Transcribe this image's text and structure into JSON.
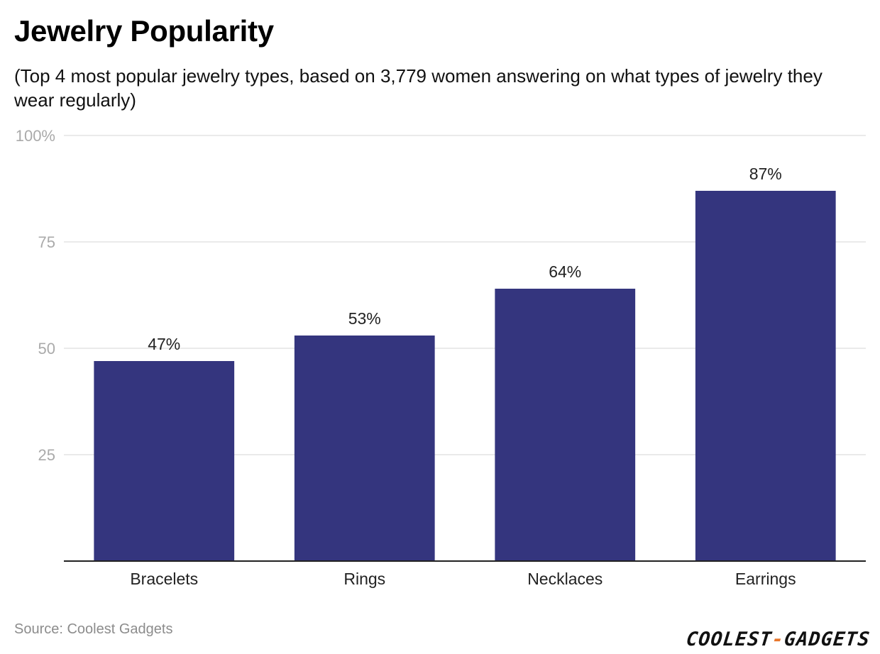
{
  "header": {
    "title": "Jewelry Popularity",
    "subtitle": "(Top 4 most popular jewelry types, based on 3,779 women answering on what types of jewelry they wear regularly)"
  },
  "footer": {
    "source": "Source: Coolest Gadgets",
    "logo_left": "COOLEST",
    "logo_dash": "-",
    "logo_right": "GADGETS"
  },
  "colors": {
    "bar": "#34357e",
    "logo_accent": "#e8762b"
  },
  "chart_data": {
    "type": "bar",
    "categories": [
      "Bracelets",
      "Rings",
      "Necklaces",
      "Earrings"
    ],
    "values": [
      47,
      53,
      64,
      87
    ],
    "data_labels": [
      "47%",
      "53%",
      "64%",
      "87%"
    ],
    "title": "Jewelry Popularity",
    "subtitle": "(Top 4 most popular jewelry types, based on 3,779 women answering on what types of jewelry they wear regularly)",
    "xlabel": "",
    "ylabel": "",
    "ylim": [
      0,
      100
    ],
    "y_ticks": [
      25,
      50,
      75,
      100
    ],
    "y_tick_labels": [
      "25",
      "50",
      "75",
      "100%"
    ],
    "grid": true,
    "legend": "none"
  }
}
